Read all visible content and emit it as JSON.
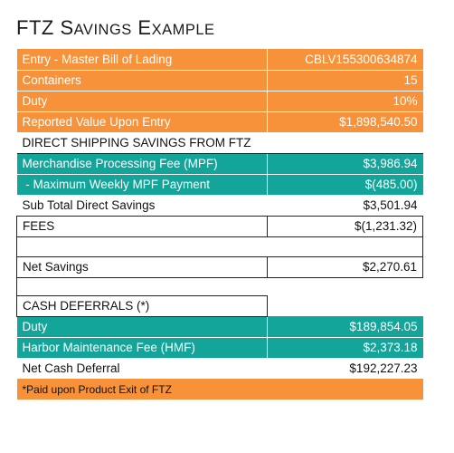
{
  "title": {
    "first_initial": "F",
    "rest1": "TZ",
    "s_initial": "S",
    "rest2": "AVINGS",
    "e_initial": "E",
    "rest3": "XAMPLE"
  },
  "rows": {
    "entry": {
      "label": "Entry - Master Bill of Lading",
      "value": "CBLV155300634874"
    },
    "containers": {
      "label": "Containers",
      "value": "15"
    },
    "duty": {
      "label": "Duty",
      "value": "10%"
    },
    "reported_value": {
      "label": "Reported Value Upon Entry",
      "value": "$1,898,540.50"
    },
    "direct_header": {
      "label": "DIRECT SHIPPING SAVINGS FROM FTZ",
      "value": ""
    },
    "mpf": {
      "label": "Merchandise Processing Fee (MPF)",
      "value": "$3,986.94"
    },
    "max_mpf": {
      "label": " - Maximum Weekly MPF Payment",
      "value": "$(485.00)"
    },
    "subtotal": {
      "label": "Sub Total Direct Savings",
      "value": "$3,501.94"
    },
    "fees": {
      "label": "FEES",
      "value": "$(1,231.32)"
    },
    "net_savings": {
      "label": "Net Savings",
      "value": "$2,270.61"
    },
    "cash_header": {
      "label": "CASH DEFERRALS (*)",
      "value": ""
    },
    "cash_duty": {
      "label": "Duty",
      "value": "$189,854.05"
    },
    "hmf": {
      "label": "Harbor Maintenance Fee (HMF)",
      "value": "$2,373.18"
    },
    "net_cash": {
      "label": "Net Cash Deferral",
      "value": "$192,227.23"
    },
    "footnote": {
      "label": "*Paid upon Product Exit of FTZ"
    }
  },
  "colors": {
    "orange": "#f7923a",
    "teal": "#13a49a",
    "text": "#111111"
  }
}
